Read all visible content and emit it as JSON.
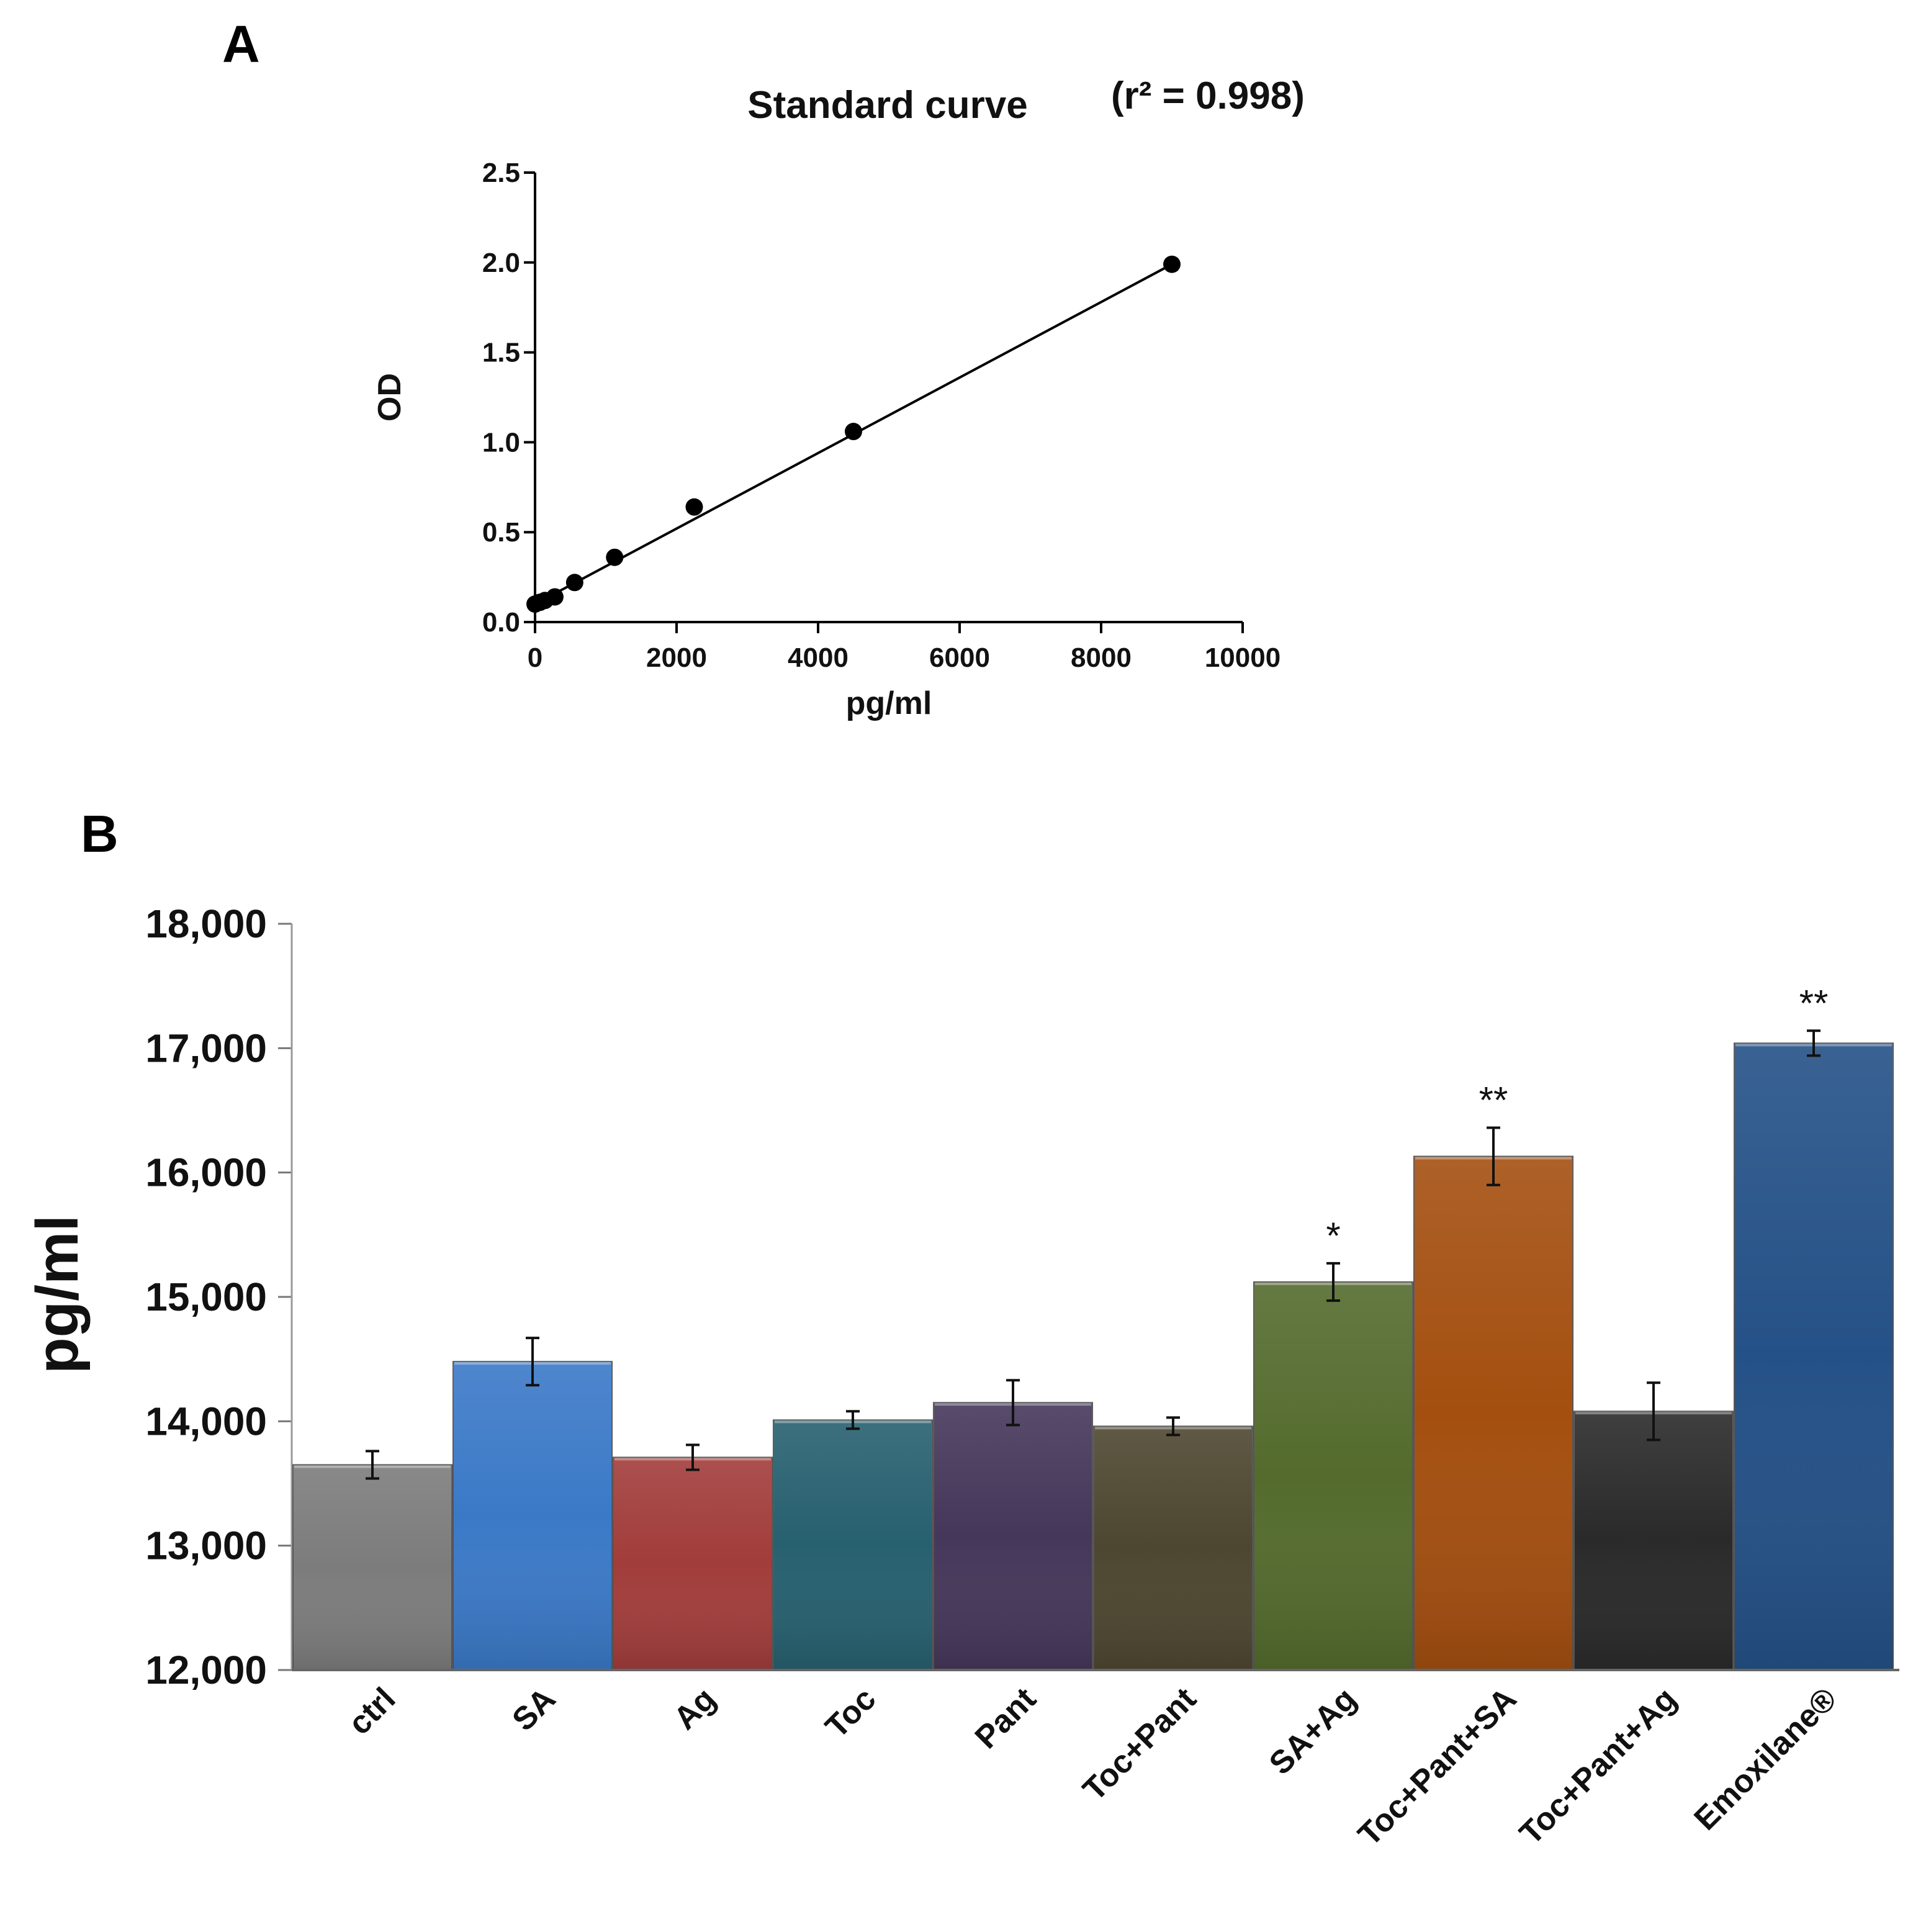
{
  "panels": {
    "a_letter": "A",
    "b_letter": "B"
  },
  "colors": {
    "curve": "#000000",
    "points": "#000000"
  },
  "chart_data": [
    {
      "type": "scatter",
      "panel": "A",
      "title": "Standard curve",
      "annotation": "(r² = 0.998)",
      "xlabel": "pg/ml",
      "ylabel": "OD",
      "xlim": [
        0,
        10000
      ],
      "ylim": [
        0,
        2.5
      ],
      "xticks": [
        0,
        2000,
        4000,
        6000,
        8000,
        10000
      ],
      "yticks": [
        "0.0",
        "0.5",
        "1.0",
        "1.5",
        "2.0",
        "2.5"
      ],
      "points": [
        {
          "x": 0,
          "y": 0.1
        },
        {
          "x": 70,
          "y": 0.11
        },
        {
          "x": 140,
          "y": 0.12
        },
        {
          "x": 280,
          "y": 0.14
        },
        {
          "x": 560,
          "y": 0.22
        },
        {
          "x": 1125,
          "y": 0.36
        },
        {
          "x": 2250,
          "y": 0.64
        },
        {
          "x": 4500,
          "y": 1.06
        },
        {
          "x": 9000,
          "y": 1.99
        }
      ],
      "fit": {
        "x0": 0,
        "y0": 0.1,
        "x1": 9000,
        "y1": 1.99
      }
    },
    {
      "type": "bar",
      "panel": "B",
      "ylabel": "pg/ml",
      "ylim": [
        12000,
        18000
      ],
      "yticks": [
        "12,000",
        "13,000",
        "14,000",
        "15,000",
        "16,000",
        "17,000",
        "18,000"
      ],
      "categories": [
        "ctrl",
        "SA",
        "Ag",
        "Toc",
        "Pant",
        "Toc+Pant",
        "SA+Ag",
        "Toc+Pant+SA",
        "Toc+Pant+Ag",
        "Emoxilane®"
      ],
      "values": [
        13650,
        14480,
        13710,
        14010,
        14150,
        13960,
        15120,
        16130,
        14080,
        17040
      ],
      "errors": [
        110,
        190,
        100,
        70,
        180,
        70,
        150,
        230,
        230,
        100
      ],
      "significance": [
        "",
        "",
        "",
        "",
        "",
        "",
        "*",
        "**",
        "",
        "**"
      ],
      "colors": [
        "#7c7c7c",
        "#3b79c7",
        "#a13d3b",
        "#27606f",
        "#45375a",
        "#4d4630",
        "#546b2d",
        "#a44f10",
        "#2a2a2a",
        "#245187"
      ]
    }
  ]
}
